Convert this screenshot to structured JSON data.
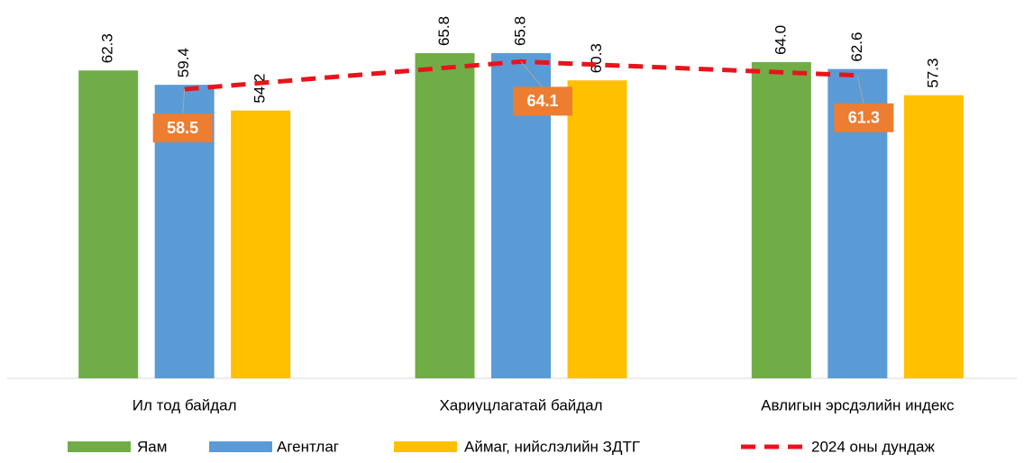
{
  "chart_data": {
    "type": "bar",
    "categories": [
      "Ил тод байдал",
      "Хариуцлагатай байдал",
      "Авлигын эрсдэлийн индекс"
    ],
    "ylim": [
      0,
      70
    ],
    "legend": "bottom",
    "series": [
      {
        "name": "Яам",
        "type": "bar",
        "color": "#70ad47",
        "values": [
          62.3,
          65.8,
          64.0
        ],
        "value_labels": [
          "62.3",
          "65.8",
          "64.0"
        ]
      },
      {
        "name": "Агентлаг",
        "type": "bar",
        "color": "#5b9bd5",
        "values": [
          59.4,
          65.8,
          62.6
        ],
        "value_labels": [
          "59.4",
          "65.8",
          "62.6"
        ]
      },
      {
        "name": "Аймаг, нийслэлийн ЗДТГ",
        "type": "bar",
        "color": "#ffc000",
        "values": [
          54.2,
          60.3,
          57.3
        ],
        "value_labels": [
          "54.2",
          "60.3",
          "57.3"
        ]
      },
      {
        "name": "2024 оны дундаж",
        "type": "line",
        "color": "#e8141c",
        "label_color": "#ed7d31",
        "values": [
          58.5,
          64.1,
          61.3
        ],
        "value_labels": [
          "58.5",
          "64.1",
          "61.3"
        ]
      }
    ]
  }
}
